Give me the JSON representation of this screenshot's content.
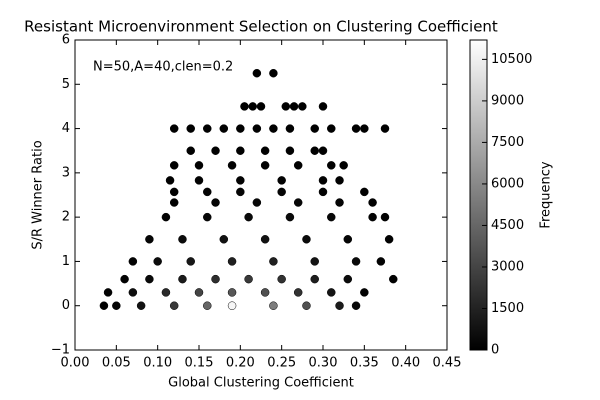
{
  "chart_data": {
    "type": "scatter",
    "title": "Resistant Microenvironment Selection on Clustering Coefficient",
    "annotation": "N=50,A=40,clen=0.2",
    "xlabel": "Global Clustering Coefficient",
    "ylabel": "S/R Winner Ratio",
    "x": [
      0.22,
      0.24,
      0.205,
      0.215,
      0.225,
      0.255,
      0.265,
      0.275,
      0.3,
      0.12,
      0.14,
      0.16,
      0.18,
      0.2,
      0.22,
      0.24,
      0.26,
      0.29,
      0.31,
      0.34,
      0.35,
      0.375,
      0.14,
      0.17,
      0.2,
      0.23,
      0.26,
      0.29,
      0.3,
      0.12,
      0.15,
      0.19,
      0.23,
      0.27,
      0.31,
      0.325,
      0.115,
      0.15,
      0.2,
      0.25,
      0.3,
      0.32,
      0.12,
      0.16,
      0.2,
      0.25,
      0.3,
      0.35,
      0.12,
      0.17,
      0.22,
      0.27,
      0.32,
      0.36,
      0.11,
      0.16,
      0.21,
      0.26,
      0.31,
      0.36,
      0.375,
      0.09,
      0.13,
      0.18,
      0.23,
      0.28,
      0.33,
      0.38,
      0.07,
      0.1,
      0.14,
      0.19,
      0.24,
      0.29,
      0.34,
      0.37,
      0.06,
      0.09,
      0.13,
      0.17,
      0.21,
      0.25,
      0.29,
      0.33,
      0.385,
      0.04,
      0.07,
      0.11,
      0.15,
      0.19,
      0.23,
      0.27,
      0.31,
      0.35,
      0.035,
      0.05,
      0.08,
      0.12,
      0.16,
      0.19,
      0.24,
      0.28,
      0.32,
      0.34
    ],
    "y": [
      5.25,
      5.25,
      4.5,
      4.5,
      4.5,
      4.5,
      4.5,
      4.5,
      4.5,
      4,
      4,
      4,
      4,
      4,
      4,
      4,
      4,
      4,
      4,
      4,
      4,
      4,
      3.5,
      3.5,
      3.5,
      3.5,
      3.5,
      3.5,
      3.5,
      3.17,
      3.17,
      3.17,
      3.17,
      3.17,
      3.17,
      3.17,
      2.83,
      2.83,
      2.83,
      2.83,
      2.83,
      2.83,
      2.57,
      2.57,
      2.57,
      2.57,
      2.57,
      2.57,
      2.33,
      2.33,
      2.33,
      2.33,
      2.33,
      2.33,
      2,
      2,
      2,
      2,
      2,
      2,
      2,
      1.5,
      1.5,
      1.5,
      1.5,
      1.5,
      1.5,
      1.5,
      1,
      1,
      1,
      1,
      1,
      1,
      1,
      1,
      0.6,
      0.6,
      0.6,
      0.6,
      0.6,
      0.6,
      0.6,
      0.6,
      0.6,
      0.3,
      0.3,
      0.3,
      0.3,
      0.3,
      0.3,
      0.3,
      0.3,
      0.3,
      0,
      0,
      0,
      0,
      0,
      0,
      0,
      0,
      0,
      0
    ],
    "frequency": [
      5,
      5,
      10,
      12,
      10,
      10,
      12,
      10,
      5,
      15,
      20,
      25,
      30,
      30,
      30,
      30,
      25,
      20,
      15,
      10,
      8,
      5,
      30,
      40,
      50,
      50,
      40,
      30,
      20,
      40,
      60,
      80,
      80,
      60,
      40,
      30,
      60,
      100,
      150,
      150,
      100,
      60,
      80,
      150,
      200,
      200,
      150,
      60,
      100,
      200,
      300,
      300,
      200,
      80,
      150,
      300,
      450,
      450,
      300,
      150,
      80,
      200,
      500,
      800,
      800,
      500,
      200,
      60,
      150,
      500,
      1000,
      1400,
      1400,
      900,
      400,
      100,
      100,
      400,
      1200,
      2000,
      2500,
      2200,
      1300,
      500,
      50,
      80,
      600,
      1800,
      3000,
      3800,
      3500,
      2200,
      900,
      150,
      50,
      200,
      800,
      2500,
      4500,
      10800,
      5500,
      3500,
      1200,
      400
    ],
    "xlim": [
      0,
      0.45
    ],
    "xticks": [
      {
        "value": 0,
        "label": "0.00"
      },
      0.05,
      {
        "value": 0.1,
        "label": "0.10"
      },
      0.15,
      {
        "value": 0.2,
        "label": "0.20"
      },
      0.25,
      {
        "value": 0.3,
        "label": "0.30"
      },
      0.35,
      {
        "value": 0.4,
        "label": "0.40"
      },
      0.45
    ],
    "ylim": [
      -1,
      6
    ],
    "yticks": [
      {
        "value": -1,
        "label": "−1"
      },
      0,
      1,
      2,
      3,
      4,
      5,
      6
    ],
    "colorbar": {
      "label": "Frequency",
      "lim": [
        0,
        11200
      ],
      "ticks": [
        0,
        1500,
        3000,
        4500,
        6000,
        7500,
        9000,
        10500
      ]
    }
  }
}
